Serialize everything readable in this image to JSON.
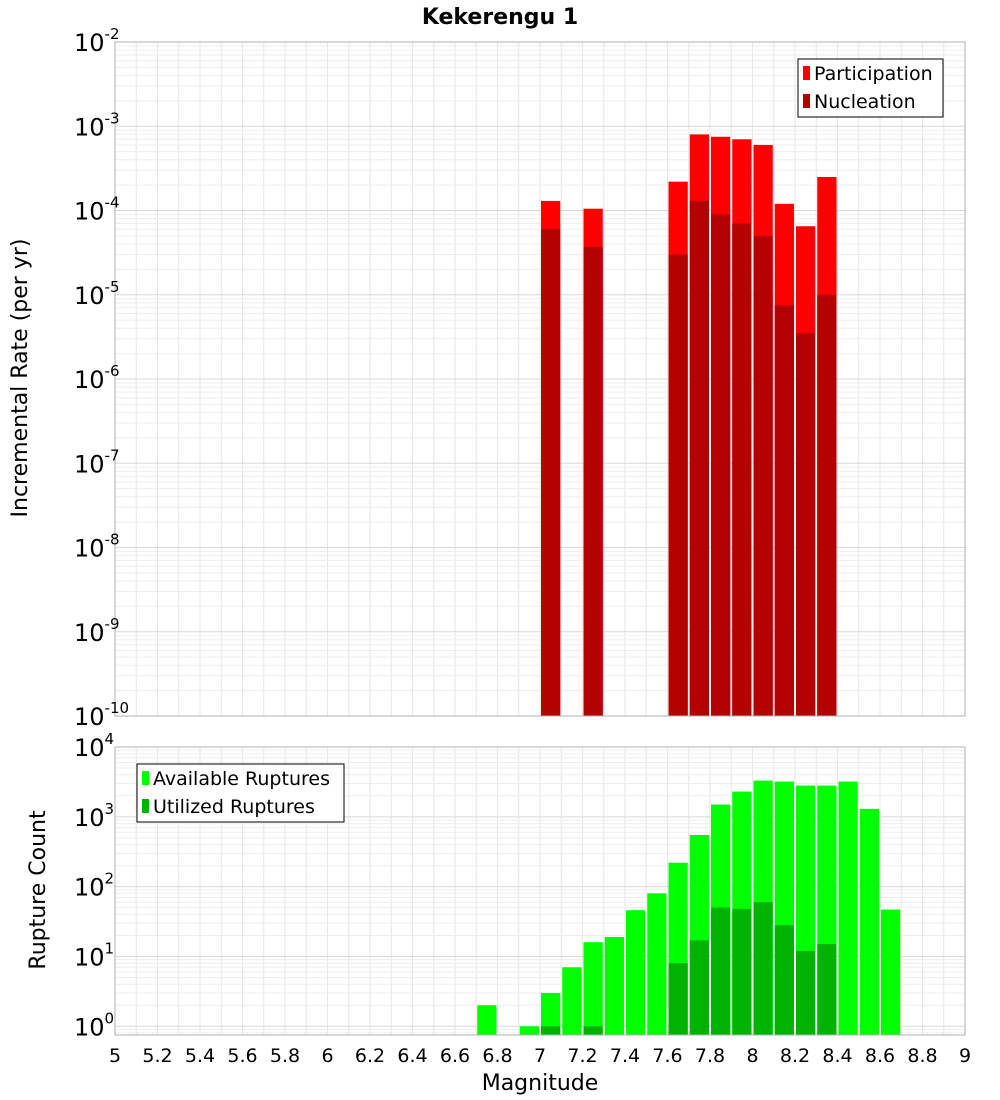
{
  "chart_data": [
    {
      "type": "bar",
      "title": "Kekerengu 1",
      "xlabel": "",
      "ylabel": "Incremental Rate (per yr)",
      "x_scale": "linear",
      "y_scale": "log",
      "xlim": [
        5,
        9
      ],
      "ylim": [
        1e-10,
        0.01
      ],
      "grid": true,
      "legend_position": "top-right",
      "y_tick_labels": [
        {
          "base": "10",
          "exp": "-10"
        },
        {
          "base": "10",
          "exp": "-9"
        },
        {
          "base": "10",
          "exp": "-8"
        },
        {
          "base": "10",
          "exp": "-7"
        },
        {
          "base": "10",
          "exp": "-6"
        },
        {
          "base": "10",
          "exp": "-5"
        },
        {
          "base": "10",
          "exp": "-4"
        },
        {
          "base": "10",
          "exp": "-3"
        },
        {
          "base": "10",
          "exp": "-2"
        }
      ],
      "series": [
        {
          "name": "Participation",
          "color": "#ff0000",
          "x": [
            7.05,
            7.25,
            7.65,
            7.75,
            7.85,
            7.95,
            8.05,
            8.15,
            8.25,
            8.35
          ],
          "values": [
            0.00013,
            0.000105,
            0.00022,
            0.0008,
            0.00075,
            0.0007,
            0.0006,
            0.00012,
            6.5e-05,
            0.00025
          ]
        },
        {
          "name": "Nucleation",
          "color": "#b30000",
          "x": [
            7.05,
            7.25,
            7.65,
            7.75,
            7.85,
            7.95,
            8.05,
            8.15,
            8.25,
            8.35
          ],
          "values": [
            6e-05,
            3.7e-05,
            3e-05,
            0.00013,
            9e-05,
            7e-05,
            5e-05,
            7.5e-06,
            3.5e-06,
            1e-05
          ]
        }
      ]
    },
    {
      "type": "bar",
      "title": "",
      "xlabel": "Magnitude",
      "ylabel": "Rupture Count",
      "x_scale": "linear",
      "y_scale": "log",
      "xlim": [
        5,
        9
      ],
      "ylim": [
        0.75,
        10000
      ],
      "grid": true,
      "legend_position": "top-left",
      "x_tick_labels": [
        "5",
        "5.2",
        "5.4",
        "5.6",
        "5.8",
        "6",
        "6.2",
        "6.4",
        "6.6",
        "6.8",
        "7",
        "7.2",
        "7.4",
        "7.6",
        "7.8",
        "8",
        "8.2",
        "8.4",
        "8.6",
        "8.8",
        "9"
      ],
      "y_tick_labels": [
        {
          "base": "10",
          "exp": "0"
        },
        {
          "base": "10",
          "exp": "1"
        },
        {
          "base": "10",
          "exp": "2"
        },
        {
          "base": "10",
          "exp": "3"
        },
        {
          "base": "10",
          "exp": "4"
        }
      ],
      "series": [
        {
          "name": "Available Ruptures",
          "color": "#00ff00",
          "x": [
            6.75,
            6.95,
            7.05,
            7.15,
            7.25,
            7.35,
            7.45,
            7.55,
            7.65,
            7.75,
            7.85,
            7.95,
            8.05,
            8.15,
            8.25,
            8.35,
            8.45,
            8.55,
            8.65
          ],
          "values": [
            2,
            1,
            3,
            7,
            16,
            19,
            46,
            80,
            220,
            550,
            1500,
            2300,
            3300,
            3200,
            2800,
            2800,
            3200,
            1300,
            47
          ]
        },
        {
          "name": "Utilized Ruptures",
          "color": "#00b300",
          "x": [
            7.05,
            7.25,
            7.65,
            7.75,
            7.85,
            7.95,
            8.05,
            8.15,
            8.25,
            8.35
          ],
          "values": [
            1,
            1,
            8,
            17,
            50,
            48,
            60,
            28,
            12,
            15
          ]
        }
      ]
    }
  ]
}
